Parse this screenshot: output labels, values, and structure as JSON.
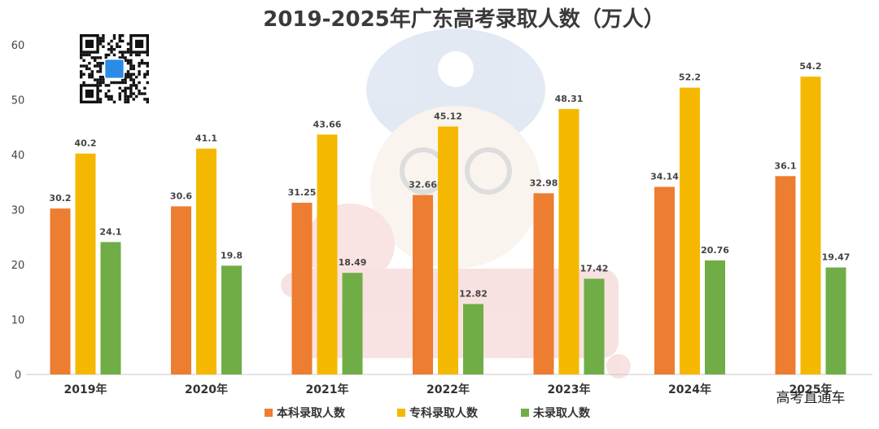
{
  "chart_data": {
    "type": "bar",
    "title": "2019-2025年广东高考录取人数（万人）",
    "categories": [
      "2019年",
      "2020年",
      "2021年",
      "2022年",
      "2023年",
      "2024年",
      "2025年"
    ],
    "series": [
      {
        "name": "本科录取人数",
        "color": "#ED7D31",
        "values": [
          30.2,
          30.6,
          31.25,
          32.66,
          32.98,
          34.14,
          36.1
        ]
      },
      {
        "name": "专科录取人数",
        "color": "#F5B800",
        "values": [
          40.2,
          41.1,
          43.66,
          45.12,
          48.31,
          52.2,
          54.2
        ]
      },
      {
        "name": "未录取人数",
        "color": "#70AD47",
        "values": [
          24.1,
          19.8,
          18.49,
          12.82,
          17.42,
          20.76,
          19.47
        ]
      }
    ],
    "value_labels": [
      [
        "30.2",
        "30.6",
        "31.25",
        "32.66",
        "32.98",
        "34.14",
        "36.1"
      ],
      [
        "40.2",
        "41.1",
        "43.66",
        "45.12",
        "48.31",
        "52.2",
        "54.2"
      ],
      [
        "24.1",
        "19.8",
        "18.49",
        "12.82",
        "17.42",
        "20.76",
        "19.47"
      ]
    ],
    "ylim": [
      0,
      60
    ],
    "yticks": [
      "0",
      "10",
      "20",
      "30",
      "40",
      "50",
      "60"
    ],
    "grid": false,
    "legend_position": "bottom-center"
  },
  "watermark": {
    "brand_text": "高考直通车",
    "qr_icon": "qr-code-icon",
    "mascot_icon": "cartoon-mascot-icon"
  }
}
